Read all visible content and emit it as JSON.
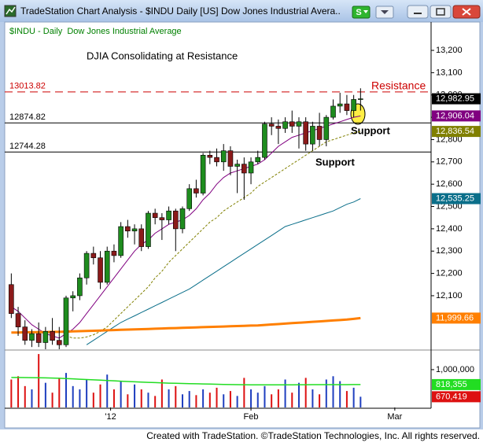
{
  "window": {
    "title": "TradeStation Chart Analysis - $INDU Daily [US] Dow Jones Industrial Avera..",
    "button": "S"
  },
  "footer": "Created with TradeStation. ©TradeStation Technologies, Inc. All rights reserved.",
  "chart_data": {
    "type": "candlestick",
    "subtitle": "$INDU - Daily  Dow Jones Industrial Average",
    "title": "DJIA Consolidating at Resistance",
    "up_color": "#1e8c1e",
    "down_color": "#8b1a1a",
    "last_label": "12,982.95",
    "open": [
      12150,
      12020,
      11960,
      11900,
      11930,
      11890,
      11940,
      11900,
      11880,
      12090,
      12100,
      12180,
      12290,
      12270,
      12160,
      12300,
      12280,
      12410,
      12390,
      12400,
      12320,
      12470,
      12450,
      12440,
      12480,
      12400,
      12490,
      12580,
      12560,
      12730,
      12720,
      12700,
      12750,
      12680,
      12690,
      12650,
      12700,
      12720,
      12870,
      12860,
      12850,
      12880,
      12860,
      12880,
      12780,
      12860,
      12800,
      12900,
      12950,
      12960,
      12930,
      12980
    ],
    "high": [
      12200,
      12050,
      11990,
      11950,
      11980,
      11960,
      12000,
      11960,
      12100,
      12120,
      12200,
      12300,
      12320,
      12300,
      12320,
      12330,
      12430,
      12440,
      12420,
      12420,
      12480,
      12490,
      12470,
      12500,
      12490,
      12500,
      12600,
      12620,
      12740,
      12750,
      12760,
      12780,
      12770,
      12710,
      12720,
      12720,
      12750,
      12880,
      12900,
      12890,
      12900,
      12930,
      12900,
      12900,
      12880,
      12920,
      12910,
      12980,
      13010,
      13000,
      13000,
      13030
    ],
    "low": [
      12000,
      11920,
      11880,
      11870,
      11870,
      11860,
      11880,
      11860,
      11870,
      12030,
      12080,
      12150,
      12240,
      12130,
      12150,
      12250,
      12270,
      12360,
      12330,
      12300,
      12310,
      12420,
      12350,
      12420,
      12300,
      12380,
      12480,
      12540,
      12550,
      12690,
      12680,
      12660,
      12640,
      12560,
      12530,
      12600,
      12690,
      12710,
      12820,
      12780,
      12830,
      12830,
      12760,
      12750,
      12750,
      12770,
      12770,
      12890,
      12920,
      12910,
      12900,
      12930
    ],
    "close": [
      12020,
      11960,
      11900,
      11930,
      11890,
      11940,
      11900,
      11880,
      12090,
      12100,
      12180,
      12290,
      12270,
      12160,
      12300,
      12280,
      12410,
      12390,
      12400,
      12320,
      12470,
      12450,
      12440,
      12480,
      12400,
      12490,
      12580,
      12560,
      12730,
      12720,
      12700,
      12750,
      12680,
      12690,
      12650,
      12700,
      12720,
      12870,
      12860,
      12850,
      12880,
      12860,
      12880,
      12780,
      12860,
      12800,
      12900,
      12950,
      12960,
      12930,
      12980,
      12982.95
    ],
    "series": [
      {
        "color": "#800080",
        "style": "solid",
        "width": 1,
        "last_label": "12,906.04",
        "values": [
          12050,
          12030,
          12000,
          11970,
          11950,
          11930,
          11920,
          11910,
          11930,
          11950,
          11980,
          12020,
          12060,
          12100,
          12140,
          12180,
          12220,
          12260,
          12300,
          12330,
          12350,
          12380,
          12400,
          12420,
          12430,
          12440,
          12460,
          12490,
          12530,
          12560,
          12600,
          12630,
          12650,
          12660,
          12670,
          12680,
          12690,
          12710,
          12740,
          12770,
          12790,
          12810,
          12820,
          12830,
          12840,
          12850,
          12860,
          12870,
          12880,
          12890,
          12900,
          12906.04
        ]
      },
      {
        "color": "#808000",
        "style": "dashed",
        "width": 1,
        "last_label": "12,836.54",
        "values": [
          null,
          null,
          null,
          null,
          null,
          null,
          null,
          null,
          11920,
          11910,
          11910,
          11915,
          11925,
          11940,
          11960,
          11990,
          12020,
          12050,
          12080,
          12110,
          12140,
          12180,
          12210,
          12250,
          12280,
          12310,
          12340,
          12370,
          12400,
          12430,
          12450,
          12480,
          12500,
          12520,
          12540,
          12560,
          12590,
          12610,
          12630,
          12650,
          12670,
          12690,
          12710,
          12730,
          12750,
          12770,
          12790,
          12800,
          12810,
          12820,
          12830,
          12836.54
        ]
      },
      {
        "color": "#0b6f8a",
        "style": "solid",
        "width": 1,
        "last_label": "12,535.25",
        "values": [
          null,
          null,
          null,
          null,
          null,
          null,
          null,
          null,
          null,
          null,
          null,
          11880,
          11900,
          11920,
          11940,
          11960,
          11980,
          11995,
          12010,
          12025,
          12040,
          12055,
          12070,
          12085,
          12100,
          12115,
          12130,
          12150,
          12170,
          12190,
          12210,
          12230,
          12250,
          12270,
          12290,
          12310,
          12330,
          12350,
          12370,
          12390,
          12410,
          12420,
          12430,
          12440,
          12450,
          12460,
          12470,
          12480,
          12495,
          12510,
          12520,
          12535.25
        ]
      },
      {
        "color": "#ff7f00",
        "style": "solid",
        "width": 3,
        "last_label": "11,999.66",
        "values": [
          11935,
          11935,
          11936,
          11936,
          11937,
          11937,
          11938,
          11938,
          11939,
          11940,
          11941,
          11942,
          11943,
          11944,
          11945,
          11946,
          11947,
          11948,
          11949,
          11950,
          11951,
          11952,
          11953,
          11954,
          11955,
          11956,
          11957,
          11958,
          11959,
          11960,
          11961,
          11962,
          11963,
          11964,
          11965,
          11966,
          11967,
          11969,
          11971,
          11973,
          11975,
          11977,
          11979,
          11981,
          11983,
          11985,
          11987,
          11989,
          11991,
          11993,
          11996,
          11999.66
        ]
      }
    ],
    "hlines": [
      {
        "value": 13013.82,
        "color": "#cc0000",
        "style": "dashed"
      },
      {
        "value": 12874.82,
        "color": "#000000",
        "style": "solid"
      },
      {
        "value": 12744.28,
        "color": "#000000",
        "style": "solid"
      }
    ],
    "annotations": [
      {
        "text": "Resistance",
        "color": "#cc0000"
      },
      {
        "text": "Support",
        "color": "#000000"
      },
      {
        "text": "Support",
        "color": "#000000"
      }
    ],
    "ylim": [
      11860,
      13320
    ],
    "yticks": [
      {
        "value": 12100,
        "label": "12,100"
      },
      {
        "value": 12200,
        "label": "12,200"
      },
      {
        "value": 12300,
        "label": "12,300"
      },
      {
        "value": 12400,
        "label": "12,400"
      },
      {
        "value": 12500,
        "label": "12,500"
      },
      {
        "value": 12600,
        "label": "12,600"
      },
      {
        "value": 12700,
        "label": "12,700"
      },
      {
        "value": 12800,
        "label": "12,800"
      },
      {
        "value": 12900,
        "label": "12,900"
      },
      {
        "value": 13000,
        "label": "13,000"
      },
      {
        "value": 13100,
        "label": "13,100"
      },
      {
        "value": 13200,
        "label": "13,200"
      }
    ],
    "xlim": [
      -0.5,
      61.3
    ],
    "xticks": [
      {
        "value": 14.5,
        "label": "'12"
      },
      {
        "value": 35,
        "label": "Feb"
      },
      {
        "value": 56,
        "label": "Mar"
      }
    ],
    "volume": {
      "up_color": "#1f3fbf",
      "down_color": "#dd1111",
      "last_label": "670,419",
      "last_color": "#dd1111",
      "values": [
        880000,
        920000,
        800000,
        760000,
        1190000,
        840000,
        720000,
        900000,
        960000,
        800000,
        760000,
        880000,
        720000,
        820000,
        940000,
        760000,
        860000,
        700000,
        820000,
        760000,
        720000,
        680000,
        880000,
        760000,
        800000,
        700000,
        740000,
        690000,
        760000,
        720000,
        780000,
        700000,
        740000,
        680000,
        900000,
        760000,
        720000,
        800000,
        700000,
        760000,
        880000,
        720000,
        840000,
        900000,
        760000,
        700000,
        880000,
        920000,
        860000,
        740000,
        780000,
        670419
      ],
      "average": {
        "color": "#22dd22",
        "last_label": "818,355",
        "values": [
          905000,
          905000,
          904000,
          903000,
          902000,
          900000,
          898000,
          895000,
          892000,
          888000,
          884000,
          880000,
          876000,
          872000,
          868000,
          864000,
          860000,
          856000,
          852000,
          848000,
          845000,
          842000,
          839000,
          836000,
          834000,
          832000,
          830000,
          828000,
          826000,
          824000,
          822000,
          820000,
          819000,
          818000,
          817000,
          816000,
          815000,
          815000,
          815000,
          815000,
          816000,
          816000,
          817000,
          817000,
          818000,
          818000,
          818000,
          818000,
          818000,
          818000,
          818200,
          818355
        ]
      },
      "ylim": [
        540000,
        1210000
      ],
      "yticks": [
        {
          "value": 1000000,
          "label": "1,000,000"
        }
      ]
    }
  }
}
